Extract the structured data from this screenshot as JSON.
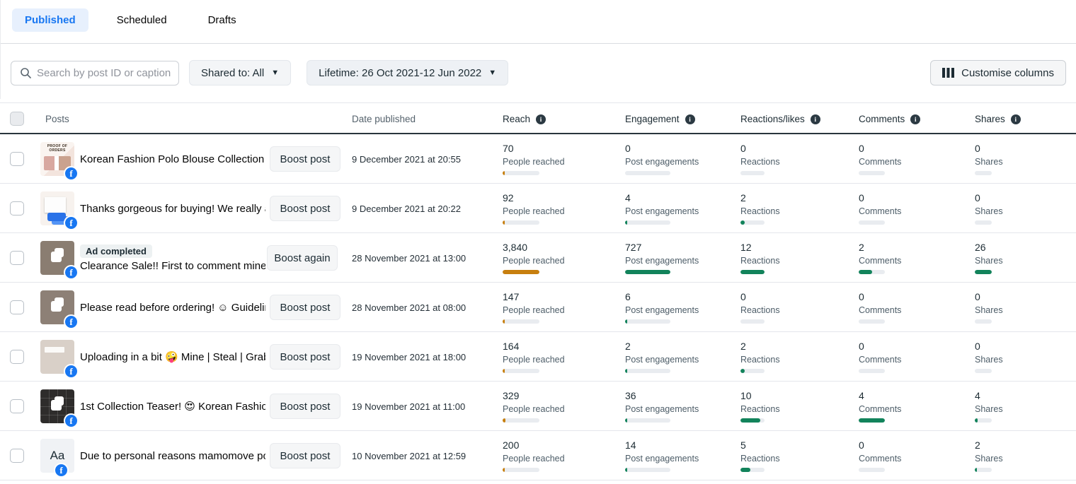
{
  "colors": {
    "blue": "#1877f2",
    "tab_active_bg": "#e7f0fd",
    "reach_bar": "#c77f0e",
    "green_bar": "#12835b",
    "track": "#e9ecf0",
    "dark": "#1c2b33"
  },
  "tabs": [
    {
      "label": "Published",
      "active": true
    },
    {
      "label": "Scheduled",
      "active": false
    },
    {
      "label": "Drafts",
      "active": false
    }
  ],
  "filters": {
    "search_placeholder": "Search by post ID or caption",
    "shared_to": "Shared to: All",
    "lifetime": "Lifetime: 26 Oct 2021-12 Jun 2022",
    "customise": "Customise columns"
  },
  "table": {
    "header": {
      "posts": "Posts",
      "date": "Date published",
      "metrics": [
        "Reach",
        "Engagement",
        "Reactions/likes",
        "Comments",
        "Shares"
      ]
    },
    "metric_labels": [
      "People reached",
      "Post engagements",
      "Reactions",
      "Comments",
      "Shares"
    ],
    "rows": [
      {
        "caption": "Korean Fashion Polo Blouse Collection ...",
        "thumb_text": "PROOF OF ORDERS",
        "button": "Boost post",
        "date": "9 December 2021 at 20:55",
        "metrics": [
          {
            "value": "70",
            "pct": 1.8
          },
          {
            "value": "0",
            "pct": 0
          },
          {
            "value": "0",
            "pct": 0
          },
          {
            "value": "0",
            "pct": 0
          },
          {
            "value": "0",
            "pct": 0
          }
        ]
      },
      {
        "caption": "Thanks gorgeous for buying! We really a...",
        "button": "Boost post",
        "date": "9 December 2021 at 20:22",
        "metrics": [
          {
            "value": "92",
            "pct": 2.4
          },
          {
            "value": "4",
            "pct": 0.8
          },
          {
            "value": "2",
            "pct": 16.7
          },
          {
            "value": "0",
            "pct": 0
          },
          {
            "value": "0",
            "pct": 0
          }
        ]
      },
      {
        "badge": "Ad completed",
        "caption": "Clearance Sale!! First to comment mine ...",
        "button": "Boost again",
        "date": "28 November 2021 at 13:00",
        "metrics": [
          {
            "value": "3,840",
            "pct": 100
          },
          {
            "value": "727",
            "pct": 100
          },
          {
            "value": "12",
            "pct": 100
          },
          {
            "value": "2",
            "pct": 50
          },
          {
            "value": "26",
            "pct": 100
          }
        ]
      },
      {
        "caption": "Please read before ordering! ☺ Guidelin...",
        "button": "Boost post",
        "date": "28 November 2021 at 08:00",
        "metrics": [
          {
            "value": "147",
            "pct": 3.8
          },
          {
            "value": "6",
            "pct": 1.0
          },
          {
            "value": "0",
            "pct": 0
          },
          {
            "value": "0",
            "pct": 0
          },
          {
            "value": "0",
            "pct": 0
          }
        ]
      },
      {
        "caption": "Uploading in a bit 🤪 Mine | Steal | Grab...",
        "button": "Boost post",
        "date": "19 November 2021 at 18:00",
        "metrics": [
          {
            "value": "164",
            "pct": 4.3
          },
          {
            "value": "2",
            "pct": 0.5
          },
          {
            "value": "2",
            "pct": 16.7
          },
          {
            "value": "0",
            "pct": 0
          },
          {
            "value": "0",
            "pct": 0
          }
        ]
      },
      {
        "caption": "1st Collection Teaser! 😍 Korean Fashion...",
        "button": "Boost post",
        "date": "19 November 2021 at 11:00",
        "metrics": [
          {
            "value": "329",
            "pct": 8.6
          },
          {
            "value": "36",
            "pct": 5.0
          },
          {
            "value": "10",
            "pct": 83.3
          },
          {
            "value": "4",
            "pct": 100
          },
          {
            "value": "4",
            "pct": 15.4
          }
        ]
      },
      {
        "caption": "Due to personal reasons mamomove po ...",
        "thumb_text": "Aa",
        "button": "Boost post",
        "date": "10 November 2021 at 12:59",
        "metrics": [
          {
            "value": "200",
            "pct": 5.2
          },
          {
            "value": "14",
            "pct": 1.9
          },
          {
            "value": "5",
            "pct": 41.7
          },
          {
            "value": "0",
            "pct": 0
          },
          {
            "value": "2",
            "pct": 7.7
          }
        ]
      }
    ]
  }
}
